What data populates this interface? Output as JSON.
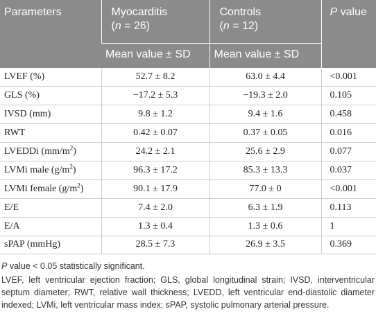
{
  "table": {
    "header": {
      "parameters": "Parameters",
      "groups": [
        {
          "name": "Myocarditis",
          "sample": [
            "(",
            "n",
            " = 26)"
          ],
          "subheader": "Mean value ± SD"
        },
        {
          "name": "Controls",
          "sample": [
            "(",
            "n",
            " = 12)"
          ],
          "subheader": "Mean value ± SD"
        }
      ],
      "p_value": [
        "P",
        " value"
      ]
    },
    "rows": [
      [
        [
          "LVEF (%)"
        ],
        "52.7 ± 8.2",
        "63.0 ± 4.4",
        "<0.001"
      ],
      [
        [
          "GLS (%)"
        ],
        "−17.2 ± 5.3",
        "−19.3 ± 2.0",
        "0.105"
      ],
      [
        [
          "IVSD (mm)"
        ],
        "9.8 ± 1.2",
        "9.4 ± 1.6",
        "0.458"
      ],
      [
        [
          "RWT"
        ],
        "0.42 ± 0.07",
        "0.37 ± 0.05",
        "0.016"
      ],
      [
        [
          "LVEDDi (mm/m",
          "2",
          ")"
        ],
        "24.2 ± 2.1",
        "25.6 ± 2.9",
        "0.077"
      ],
      [
        [
          "LVMi male (g/m",
          "2",
          ")"
        ],
        "96.3 ± 17.2",
        "85.3 ± 13.3",
        "0.037"
      ],
      [
        [
          "LVMi female (g/m",
          "2",
          ")"
        ],
        "90.1 ± 17.9",
        "77.0 ± 0",
        "<0.001"
      ],
      [
        [
          "E/E"
        ],
        "7.4 ± 2.0",
        "6.3 ± 1.9",
        "0.113"
      ],
      [
        [
          "E/A"
        ],
        "1.3 ± 0.4",
        "1.3 ± 0.6",
        "1"
      ],
      [
        [
          "sPAP (mmHg)"
        ],
        "28.5 ± 7.3",
        "26.9 ± 3.5",
        "0.369"
      ]
    ]
  },
  "notes": {
    "significance": [
      "P",
      " value < 0.05 statistically significant."
    ],
    "abbreviations": "LVEF, left ventricular ejection fraction; GLS, global longitudinal strain; IVSD, interventricular septum diameter; RWT, relative wall thickness; LVEDD, left ventricular end-diastolic diameter indexed; LVMi, left ventricular mass index; sPAP, systolic pulmonary arterial pressure."
  }
}
